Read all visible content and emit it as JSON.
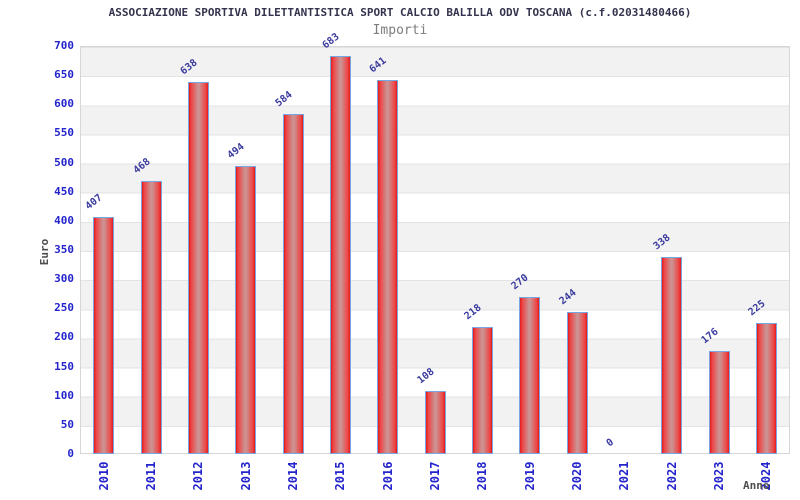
{
  "header": {
    "title": "ASSOCIAZIONE SPORTIVA DILETTANTISTICA SPORT CALCIO BALILLA ODV TOSCANA (c.f.02031480466)",
    "subtitle": "Importi"
  },
  "chart_data": {
    "type": "bar",
    "title": "ASSOCIAZIONE SPORTIVA DILETTANTISTICA SPORT CALCIO BALILLA ODV TOSCANA (c.f.02031480466)",
    "subtitle": "Importi",
    "categories": [
      "2010",
      "2011",
      "2012",
      "2013",
      "2014",
      "2015",
      "2016",
      "2017",
      "2018",
      "2019",
      "2020",
      "2021",
      "2022",
      "2023",
      "2024"
    ],
    "values": [
      407,
      468,
      638,
      494,
      584,
      683,
      641,
      108,
      218,
      270,
      244,
      0,
      338,
      176,
      225
    ],
    "xlabel": "Anno",
    "ylabel": "Euro",
    "ylim": [
      0,
      700
    ],
    "ytick_step": 50,
    "grid": "horizontal, alternating 50-unit bands",
    "legend": "none",
    "colors": {
      "bar_edge_red": "#e31a1a",
      "bar_center": "#cd9191",
      "bar_border_blue": "#76a7e3",
      "tick_label_blue": "#2424cc",
      "value_label_blue": "#3a3a9e",
      "band_gray": "#f2f2f2",
      "gridline": "#e3e3e3",
      "title_color": "#33334d",
      "subtitle_color": "#7d7d7d",
      "axis_title_color": "#4d4d4d"
    }
  }
}
